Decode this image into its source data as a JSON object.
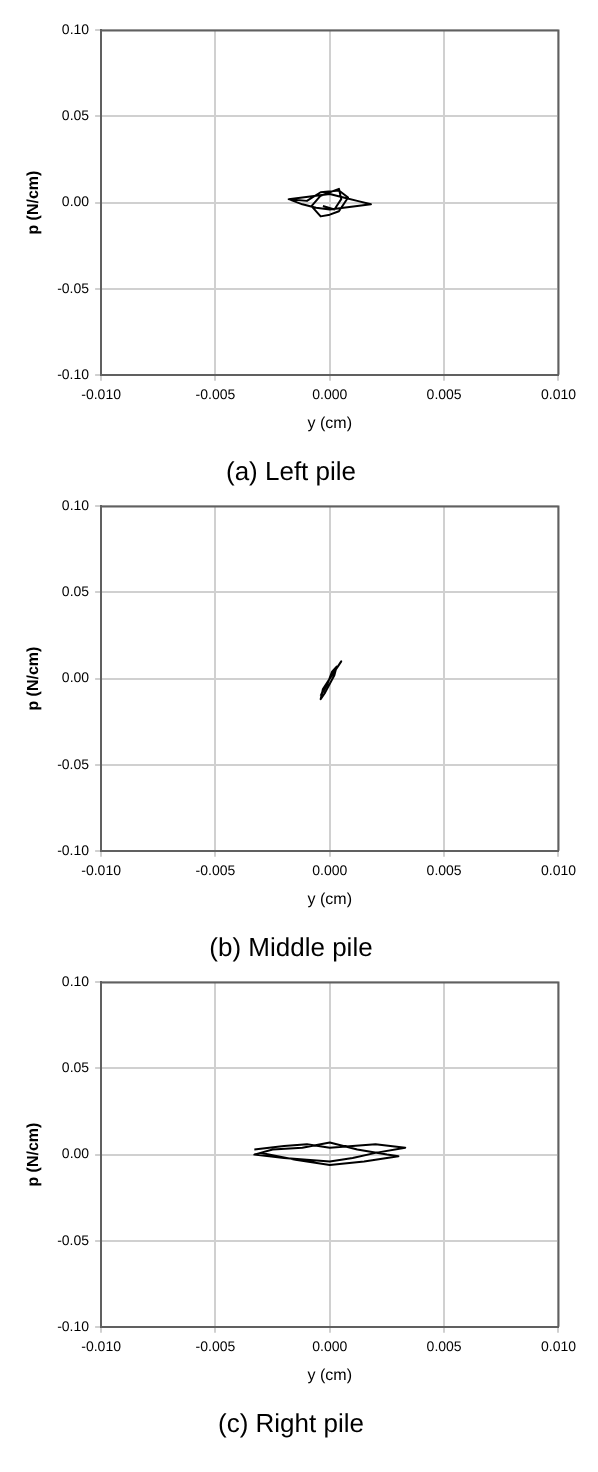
{
  "chart_data": [
    {
      "type": "line",
      "title": "(a) Left pile",
      "xlabel": "y (cm)",
      "ylabel": "p (N/cm)",
      "grid": true,
      "legend": false,
      "marker": "none",
      "line_style": "solid",
      "xlim": [
        -0.01,
        0.01
      ],
      "ylim": [
        -0.1,
        0.1
      ],
      "xticks": [
        {
          "value": -0.01,
          "label": "-0.010"
        },
        {
          "value": -0.005,
          "label": "-0.005"
        },
        {
          "value": 0,
          "label": "0.000"
        },
        {
          "value": 0.005,
          "label": "0.005"
        },
        {
          "value": 0.01,
          "label": "0.010"
        }
      ],
      "yticks": [
        {
          "value": -0.1,
          "label": "-0.10"
        },
        {
          "value": -0.05,
          "label": "-0.05"
        },
        {
          "value": 0,
          "label": "0.00"
        },
        {
          "value": 0.05,
          "label": "0.05"
        },
        {
          "value": 0.1,
          "label": "0.10"
        }
      ],
      "series": [
        {
          "color": "#000000",
          "x": [
            -0.0018,
            -0.0012,
            -0.0006,
            0,
            0.0006,
            0.0012,
            0.0018,
            0.0012,
            0.0006,
            0,
            -0.0006,
            -0.0012,
            -0.0018,
            -0.001,
            -0.0004,
            0.0004,
            0.0008,
            0.0004,
            0,
            -0.0004,
            -0.0008,
            -0.0004,
            0.0004,
            0.0005,
            0.0002,
            -0.0003
          ],
          "values": [
            0.002,
            0.003,
            0.004,
            0.005,
            0.003,
            0.001,
            -0.001,
            -0.002,
            -0.003,
            -0.004,
            -0.003,
            -0.001,
            0.002,
            0.001,
            0.006,
            0.007,
            0.003,
            -0.005,
            -0.007,
            -0.008,
            -0.002,
            0.004,
            0.008,
            0.002,
            -0.004,
            -0.002
          ]
        }
      ]
    },
    {
      "type": "line",
      "title": "(b) Middle pile",
      "xlabel": "y (cm)",
      "ylabel": "p (N/cm)",
      "grid": true,
      "legend": false,
      "marker": "none",
      "line_style": "solid",
      "xlim": [
        -0.01,
        0.01
      ],
      "ylim": [
        -0.1,
        0.1
      ],
      "xticks": [
        {
          "value": -0.01,
          "label": "-0.010"
        },
        {
          "value": -0.005,
          "label": "-0.005"
        },
        {
          "value": 0,
          "label": "0.000"
        },
        {
          "value": 0.005,
          "label": "0.005"
        },
        {
          "value": 0.01,
          "label": "0.010"
        }
      ],
      "yticks": [
        {
          "value": -0.1,
          "label": "-0.10"
        },
        {
          "value": -0.05,
          "label": "-0.05"
        },
        {
          "value": 0,
          "label": "0.00"
        },
        {
          "value": 0.05,
          "label": "0.05"
        },
        {
          "value": 0.1,
          "label": "0.10"
        }
      ],
      "series": [
        {
          "color": "#000000",
          "x": [
            -0.0004,
            -0.0002,
            0,
            0.0002,
            0.0004,
            0.0005,
            0.0003,
            0.0001,
            -0.0001,
            -0.0003,
            -0.0004,
            -0.0002,
            0,
            0.0002,
            0.0003,
            0.0001,
            -0.0001,
            -0.0003
          ],
          "values": [
            -0.01,
            -0.004,
            0,
            0.004,
            0.008,
            0.01,
            0.006,
            0.002,
            -0.002,
            -0.006,
            -0.012,
            -0.008,
            -0.003,
            0.002,
            0.007,
            0.004,
            -0.003,
            -0.008
          ]
        }
      ]
    },
    {
      "type": "line",
      "title": "(c) Right pile",
      "xlabel": "y (cm)",
      "ylabel": "p (N/cm)",
      "grid": true,
      "legend": false,
      "marker": "none",
      "line_style": "solid",
      "xlim": [
        -0.01,
        0.01
      ],
      "ylim": [
        -0.1,
        0.1
      ],
      "xticks": [
        {
          "value": -0.01,
          "label": "-0.010"
        },
        {
          "value": -0.005,
          "label": "-0.005"
        },
        {
          "value": 0,
          "label": "0.000"
        },
        {
          "value": 0.005,
          "label": "0.005"
        },
        {
          "value": 0.01,
          "label": "0.010"
        }
      ],
      "yticks": [
        {
          "value": -0.1,
          "label": "-0.10"
        },
        {
          "value": -0.05,
          "label": "-0.05"
        },
        {
          "value": 0,
          "label": "0.00"
        },
        {
          "value": 0.05,
          "label": "0.05"
        },
        {
          "value": 0.1,
          "label": "0.10"
        }
      ],
      "series": [
        {
          "color": "#000000",
          "x": [
            -0.0033,
            -0.002,
            -0.001,
            0,
            0.001,
            0.002,
            0.0033,
            0.002,
            0.001,
            0,
            -0.001,
            -0.002,
            -0.0033,
            -0.0025,
            -0.0012,
            0,
            0.0012,
            0.0025,
            0.003,
            0.0015,
            0,
            -0.0015,
            -0.003
          ],
          "values": [
            0.003,
            0.005,
            0.006,
            0.004,
            0.005,
            0.006,
            0.004,
            0.001,
            -0.002,
            -0.004,
            -0.003,
            -0.002,
            0,
            0.003,
            0.004,
            0.007,
            0.003,
            0,
            -0.001,
            -0.004,
            -0.006,
            -0.003,
            0.001
          ]
        }
      ]
    }
  ]
}
